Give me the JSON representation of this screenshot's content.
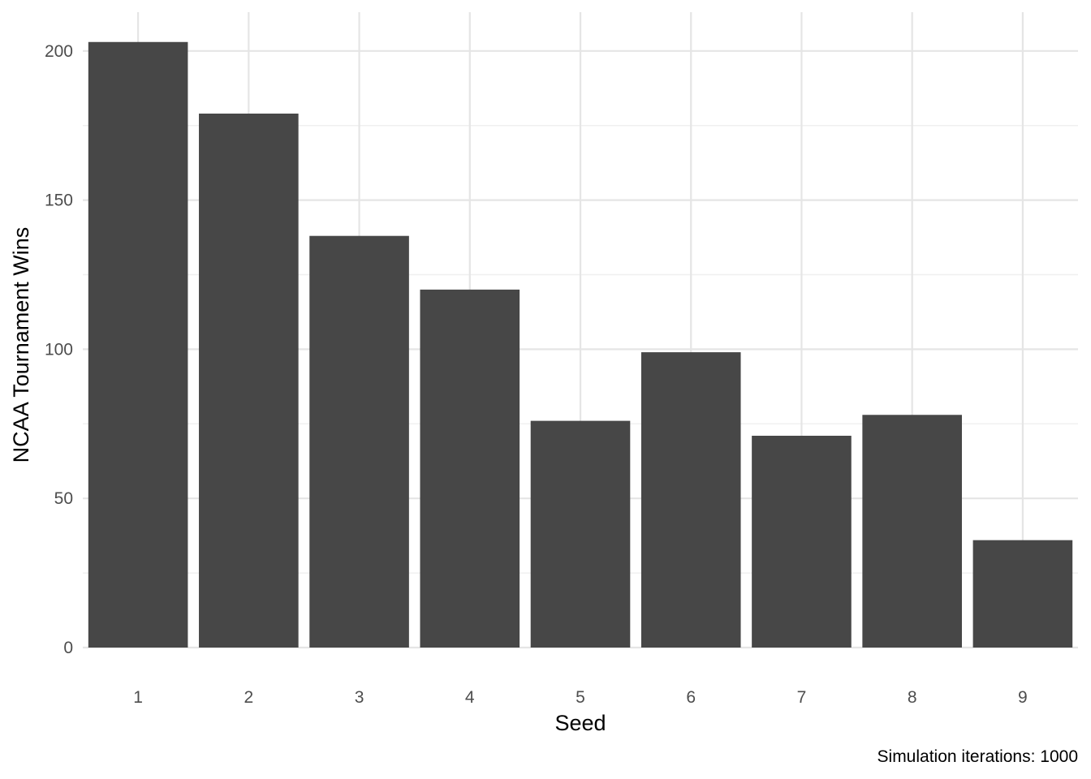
{
  "chart_data": {
    "type": "bar",
    "categories": [
      "1",
      "2",
      "3",
      "4",
      "5",
      "6",
      "7",
      "8",
      "9"
    ],
    "values": [
      203,
      179,
      138,
      120,
      76,
      99,
      71,
      78,
      36
    ],
    "xlabel": "Seed",
    "ylabel": "NCAA Tournament Wins",
    "caption": "Simulation iterations: 1000",
    "ylim": [
      0,
      213
    ],
    "yticks": [
      0,
      50,
      100,
      150,
      200
    ],
    "grid": true,
    "legend": "none",
    "colors": {
      "bar": "#474747",
      "grid_major": "#e5e5e5",
      "grid_minor": "#f0f0f0",
      "tick_text": "#4d4d4d",
      "title_text": "#000000"
    }
  }
}
